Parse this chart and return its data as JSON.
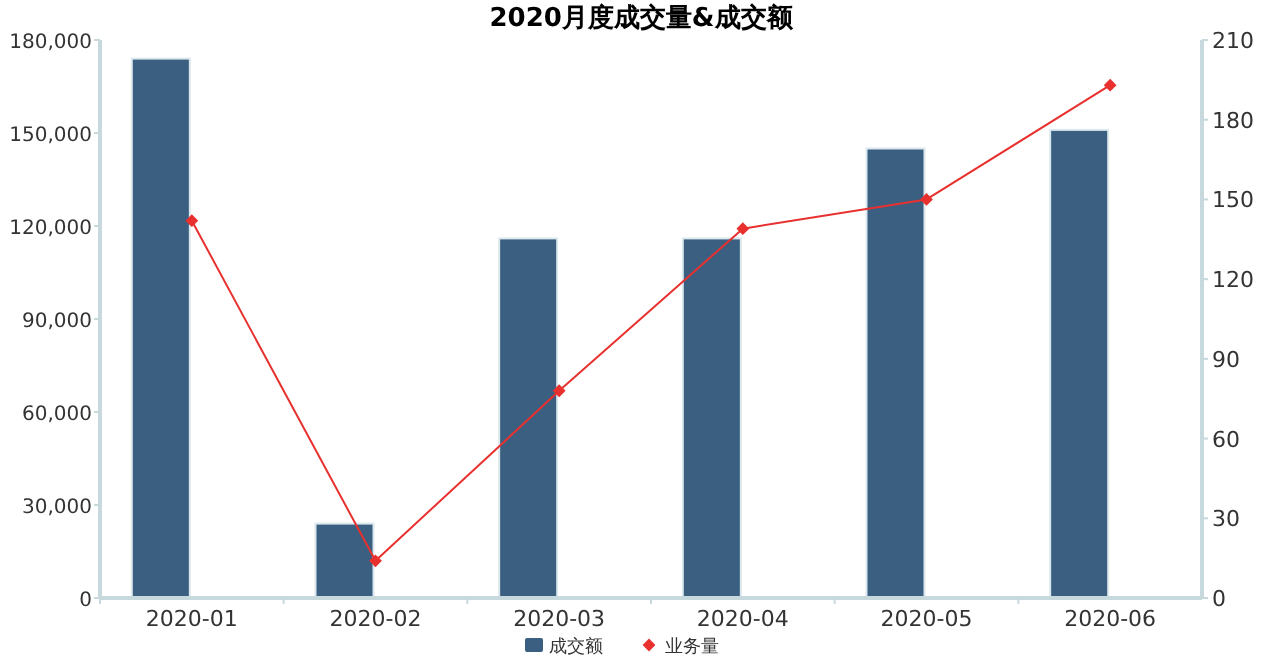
{
  "chart_data": {
    "type": "bar",
    "title": "2020月度成交量&成交额",
    "categories": [
      "2020-01",
      "2020-02",
      "2020-03",
      "2020-04",
      "2020-05",
      "2020-06"
    ],
    "series": [
      {
        "name": "成交额",
        "color": "#3a5f80",
        "values": [
          174000,
          24000,
          116000,
          116000,
          145000,
          151000
        ]
      },
      {
        "name": "业务量",
        "type": "line",
        "axis": "y2",
        "color": "#e8312f",
        "marker": "diamond",
        "values": [
          142,
          14,
          78,
          139,
          150,
          193
        ]
      }
    ],
    "ylim": [
      0,
      180000
    ],
    "yticks": [
      {
        "value": 0,
        "label": "0"
      },
      {
        "value": 30000,
        "label": "30,000"
      },
      {
        "value": 60000,
        "label": "60,000"
      },
      {
        "value": 90000,
        "label": "90,000"
      },
      {
        "value": 120000,
        "label": "120,000"
      },
      {
        "value": 150000,
        "label": "150,000"
      },
      {
        "value": 180000,
        "label": "180,000"
      }
    ],
    "y2lim": [
      0,
      210
    ],
    "y2ticks": [
      0,
      30,
      60,
      90,
      120,
      150,
      180,
      210
    ],
    "grid": false,
    "legend": "bottom"
  }
}
